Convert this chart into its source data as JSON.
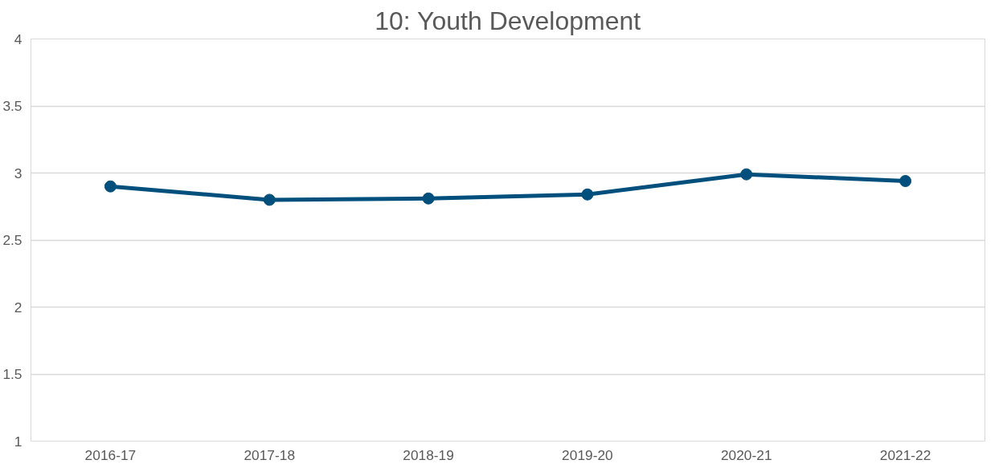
{
  "chart_data": {
    "type": "line",
    "title": "10: Youth Development",
    "categories": [
      "2016-17",
      "2017-18",
      "2018-19",
      "2019-20",
      "2020-21",
      "2021-22"
    ],
    "series": [
      {
        "color": "#004f7c",
        "values": [
          2.9,
          2.8,
          2.81,
          2.84,
          2.99,
          2.94
        ]
      }
    ],
    "ylim": [
      1,
      4
    ],
    "yticks": [
      1,
      1.5,
      2,
      2.5,
      3,
      3.5,
      4
    ],
    "grid": "y",
    "marker": "circle",
    "line_style": "solid"
  }
}
